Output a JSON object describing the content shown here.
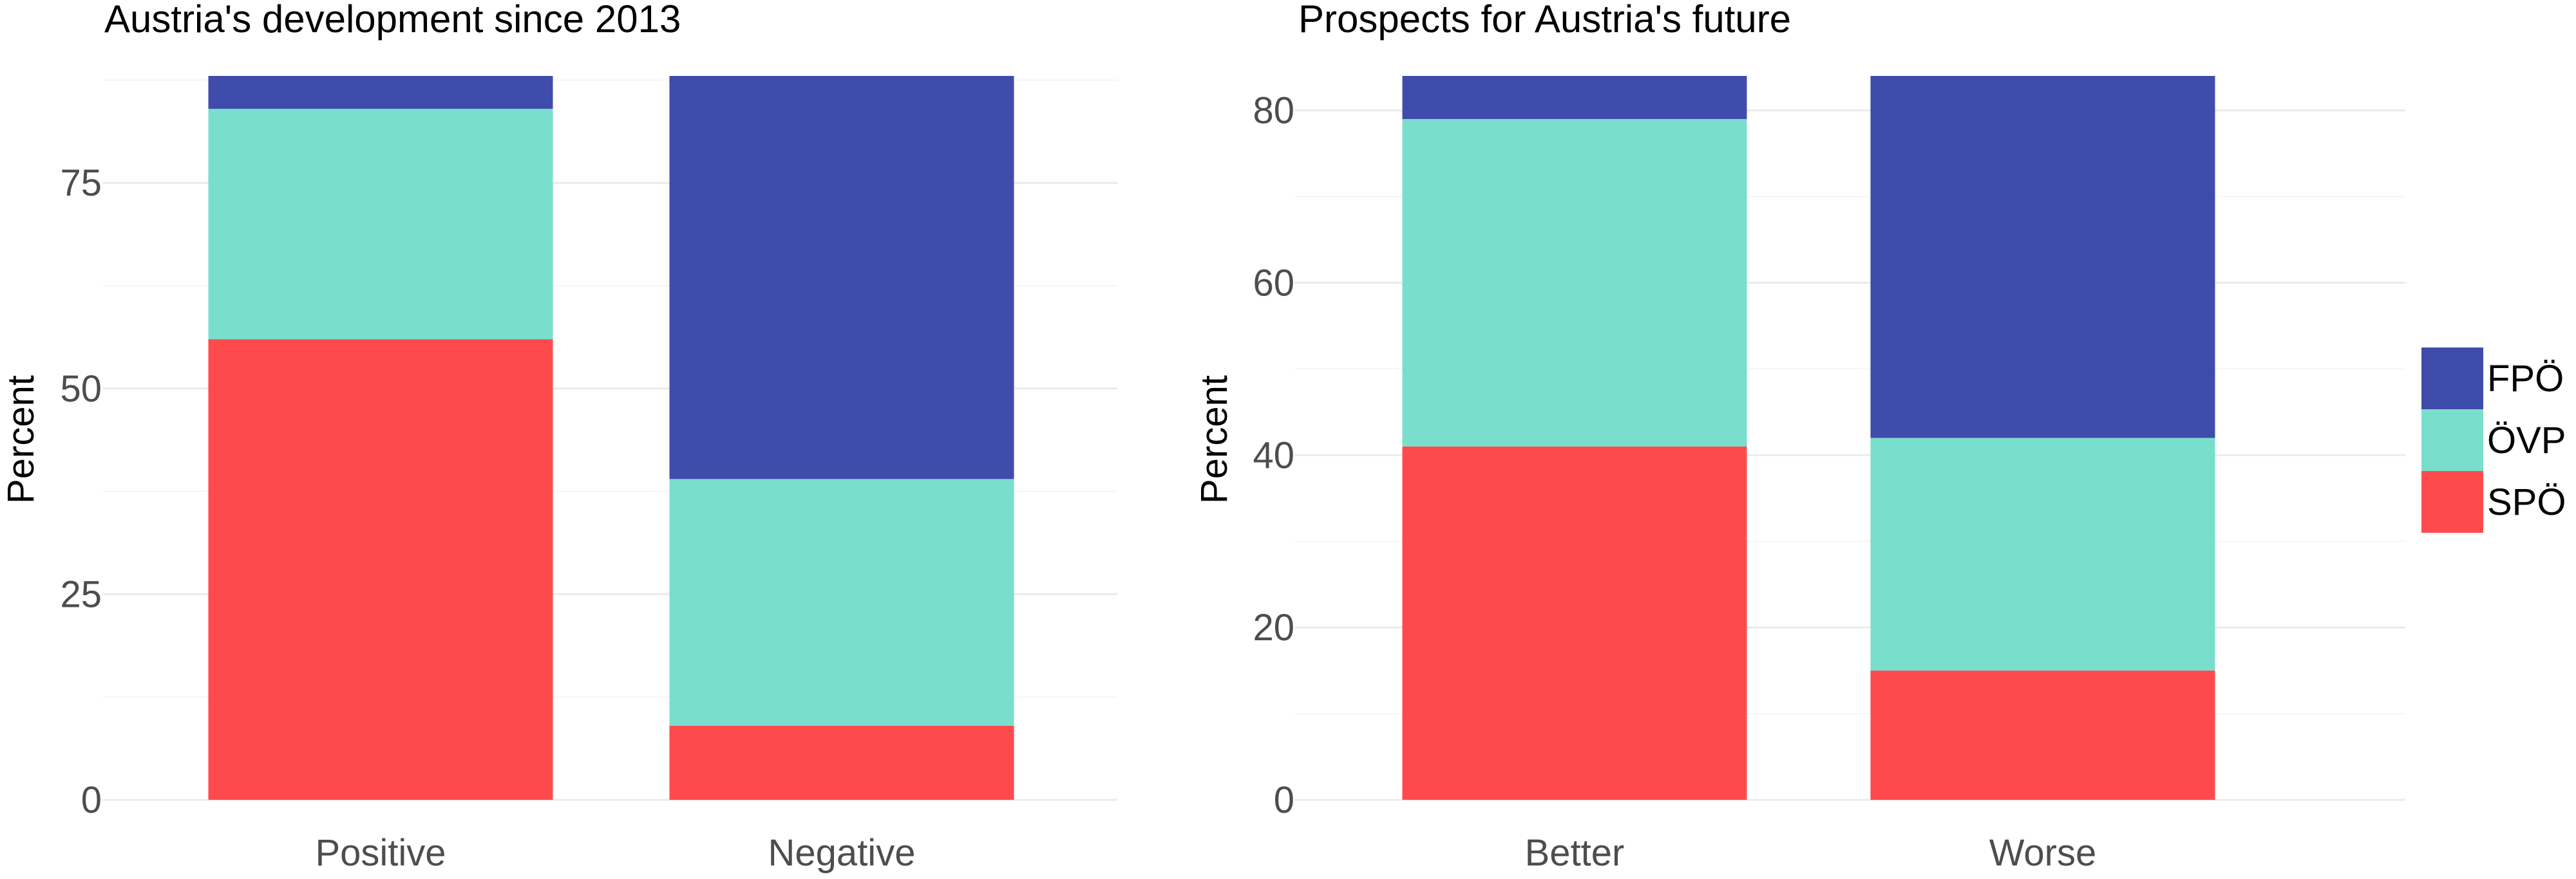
{
  "colors": {
    "FPÖ": "#404CAC",
    "ÖVP": "#79DECC",
    "SPÖ": "#FF4A4D",
    "grid_major": "#EBEBEB",
    "grid_minor": "#F5F5F5"
  },
  "legend": {
    "items": [
      "FPÖ",
      "ÖVP",
      "SPÖ"
    ],
    "position": "right"
  },
  "chart_data": [
    {
      "type": "bar",
      "stacked": true,
      "title": "Austria's development since 2013",
      "xlabel": "",
      "ylabel": "Percent",
      "categories": [
        "Positive",
        "Negative"
      ],
      "yticks": [
        "0",
        "25",
        "50",
        "75"
      ],
      "ylim": [
        0,
        88
      ],
      "grid": true,
      "series": [
        {
          "name": "SPÖ",
          "values": [
            56,
            9
          ]
        },
        {
          "name": "ÖVP",
          "values": [
            28,
            30
          ]
        },
        {
          "name": "FPÖ",
          "values": [
            4,
            49
          ]
        }
      ]
    },
    {
      "type": "bar",
      "stacked": true,
      "title": "Prospects for Austria's future",
      "xlabel": "",
      "ylabel": "Percent",
      "categories": [
        "Better",
        "Worse"
      ],
      "yticks": [
        "0",
        "20",
        "40",
        "60",
        "80"
      ],
      "ylim": [
        0,
        84
      ],
      "grid": true,
      "series": [
        {
          "name": "SPÖ",
          "values": [
            41,
            15
          ]
        },
        {
          "name": "ÖVP",
          "values": [
            38,
            27
          ]
        },
        {
          "name": "FPÖ",
          "values": [
            5,
            42
          ]
        }
      ]
    }
  ]
}
